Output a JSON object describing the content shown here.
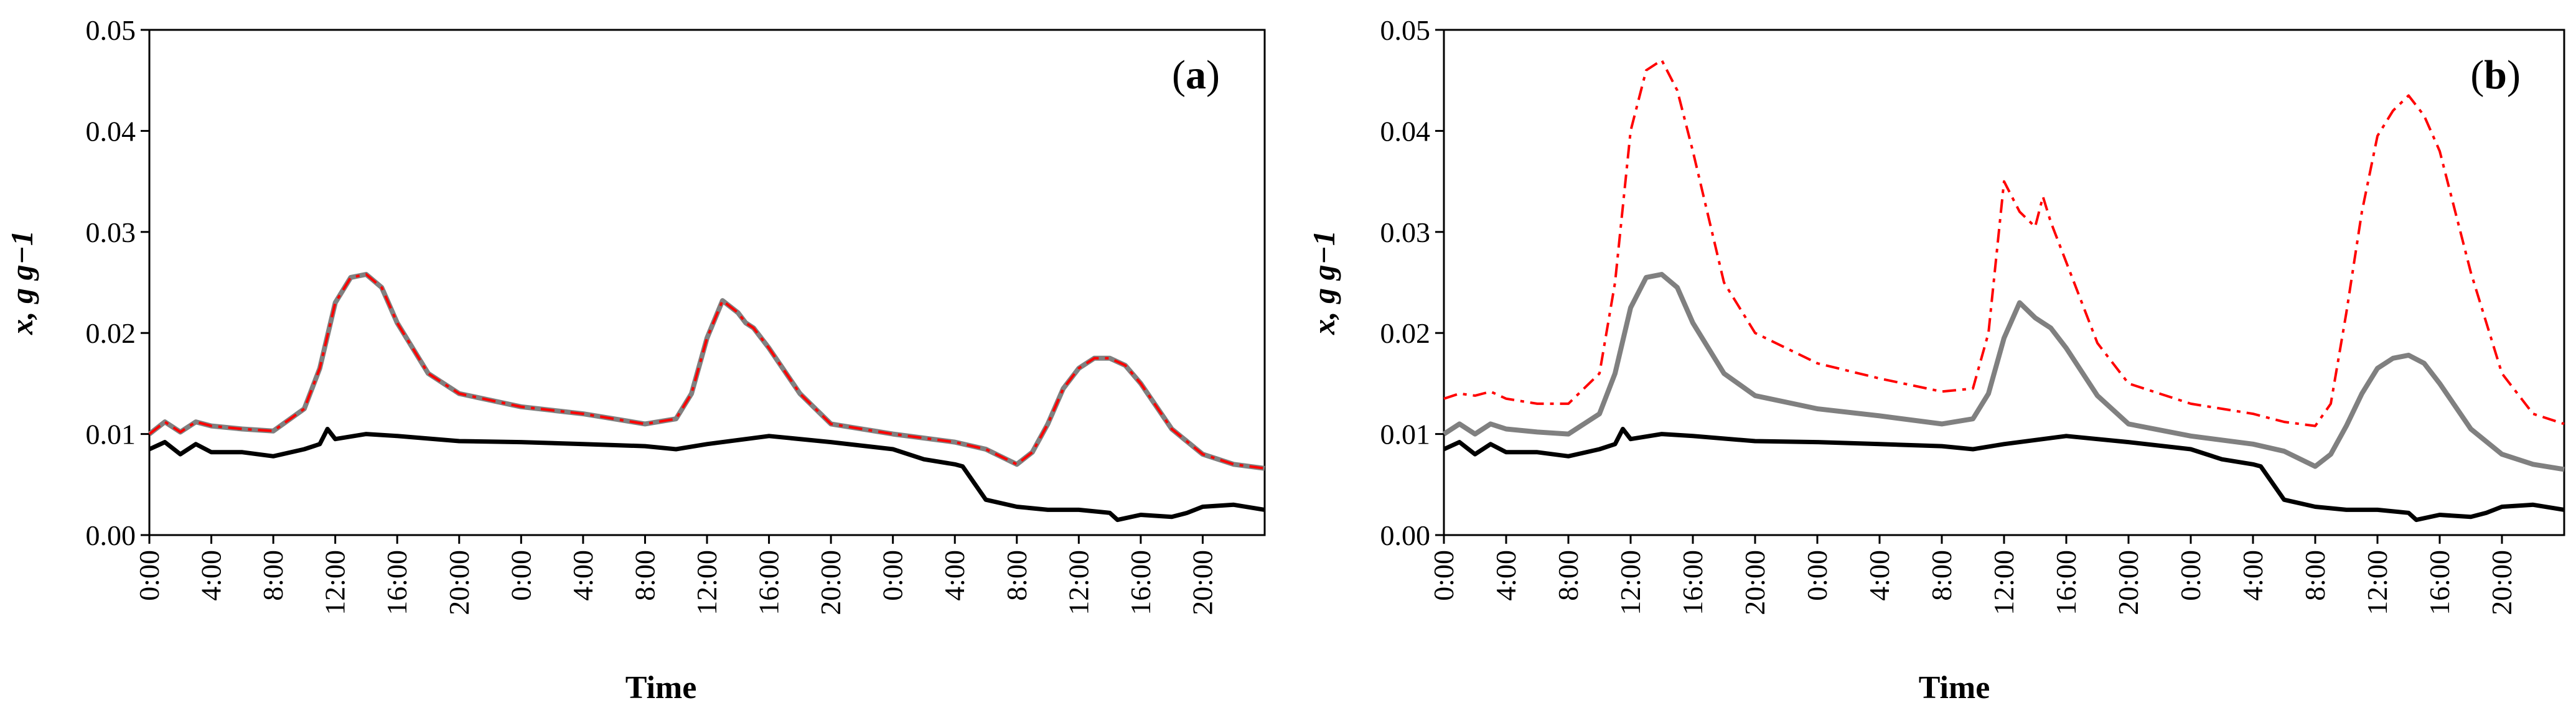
{
  "chart_data": [
    {
      "type": "line",
      "panel": "(a)",
      "label_letter": "a",
      "xlabel": "Time",
      "ylabel": "x, g g−1",
      "ylim": [
        0,
        0.05
      ],
      "yticks": [
        "0.00",
        "0.01",
        "0.02",
        "0.03",
        "0.04",
        "0.05"
      ],
      "xticks": [
        "0:00",
        "4:00",
        "8:00",
        "12:00",
        "16:00",
        "20:00",
        "0:00",
        "4:00",
        "8:00",
        "12:00",
        "16:00",
        "20:00",
        "0:00",
        "4:00",
        "8:00",
        "12:00",
        "16:00",
        "20:00"
      ],
      "x_unit": "hours",
      "xlim": [
        0,
        72
      ],
      "series": [
        {
          "name": "black",
          "color": "#000000",
          "style": "solid",
          "x": [
            0,
            1,
            2,
            3,
            4,
            6,
            8,
            10,
            11,
            11.5,
            12,
            14,
            16,
            20,
            24,
            28,
            32,
            34,
            36,
            40,
            44,
            48,
            50,
            52,
            52.5,
            54,
            56,
            58,
            60,
            62,
            62.5,
            64,
            66,
            67,
            68,
            70,
            72
          ],
          "y": [
            0.0085,
            0.0092,
            0.008,
            0.009,
            0.0082,
            0.0082,
            0.0078,
            0.0085,
            0.009,
            0.0105,
            0.0095,
            0.01,
            0.0098,
            0.0093,
            0.0092,
            0.009,
            0.0088,
            0.0085,
            0.009,
            0.0098,
            0.0092,
            0.0085,
            0.0075,
            0.007,
            0.0068,
            0.0035,
            0.0028,
            0.0025,
            0.0025,
            0.0022,
            0.0015,
            0.002,
            0.0018,
            0.0022,
            0.0028,
            0.003,
            0.0025
          ]
        },
        {
          "name": "gray",
          "color": "#808080",
          "style": "solid",
          "x": [
            0,
            1,
            2,
            3,
            4,
            6,
            8,
            10,
            11,
            12,
            13,
            14,
            15,
            16,
            18,
            20,
            24,
            28,
            32,
            34,
            35,
            36,
            37,
            38,
            38.5,
            39,
            40,
            42,
            44,
            48,
            52,
            54,
            56,
            57,
            58,
            59,
            60,
            61,
            62,
            63,
            64,
            66,
            68,
            70,
            72
          ],
          "y": [
            0.01,
            0.0112,
            0.0102,
            0.0112,
            0.0108,
            0.0105,
            0.0103,
            0.0125,
            0.0165,
            0.023,
            0.0255,
            0.0258,
            0.0245,
            0.021,
            0.016,
            0.014,
            0.0127,
            0.012,
            0.011,
            0.0115,
            0.014,
            0.0195,
            0.0232,
            0.022,
            0.021,
            0.0205,
            0.0185,
            0.014,
            0.011,
            0.01,
            0.0092,
            0.0085,
            0.007,
            0.0082,
            0.011,
            0.0145,
            0.0165,
            0.0175,
            0.0175,
            0.0168,
            0.015,
            0.0105,
            0.008,
            0.007,
            0.0066
          ]
        },
        {
          "name": "red",
          "color": "#ff0000",
          "style": "dash-dot",
          "x": [
            0,
            1,
            2,
            3,
            4,
            6,
            8,
            10,
            11,
            12,
            13,
            14,
            15,
            16,
            18,
            20,
            24,
            28,
            32,
            34,
            35,
            36,
            37,
            38,
            38.5,
            39,
            40,
            42,
            44,
            48,
            52,
            54,
            56,
            57,
            58,
            59,
            60,
            61,
            62,
            63,
            64,
            66,
            68,
            70,
            72
          ],
          "y": [
            0.01,
            0.0112,
            0.0102,
            0.0112,
            0.0108,
            0.0105,
            0.0103,
            0.0125,
            0.0165,
            0.023,
            0.0255,
            0.0258,
            0.0245,
            0.021,
            0.016,
            0.014,
            0.0127,
            0.012,
            0.011,
            0.0115,
            0.014,
            0.0195,
            0.0232,
            0.022,
            0.021,
            0.0205,
            0.0185,
            0.014,
            0.011,
            0.01,
            0.0092,
            0.0085,
            0.007,
            0.0082,
            0.011,
            0.0145,
            0.0165,
            0.0175,
            0.0175,
            0.0168,
            0.015,
            0.0105,
            0.008,
            0.007,
            0.0066
          ]
        }
      ]
    },
    {
      "type": "line",
      "panel": "(b)",
      "label_letter": "b",
      "xlabel": "Time",
      "ylabel": "x, g g−1",
      "ylim": [
        0,
        0.05
      ],
      "yticks": [
        "0.00",
        "0.01",
        "0.02",
        "0.03",
        "0.04",
        "0.05"
      ],
      "xticks": [
        "0:00",
        "4:00",
        "8:00",
        "12:00",
        "16:00",
        "20:00",
        "0:00",
        "4:00",
        "8:00",
        "12:00",
        "16:00",
        "20:00",
        "0:00",
        "4:00",
        "8:00",
        "12:00",
        "16:00",
        "20:00"
      ],
      "x_unit": "hours",
      "xlim": [
        0,
        72
      ],
      "series": [
        {
          "name": "black",
          "color": "#000000",
          "style": "solid",
          "x": [
            0,
            1,
            2,
            3,
            4,
            6,
            8,
            10,
            11,
            11.5,
            12,
            14,
            16,
            20,
            24,
            28,
            32,
            34,
            36,
            40,
            44,
            48,
            50,
            52,
            52.5,
            54,
            56,
            58,
            60,
            62,
            62.5,
            64,
            66,
            67,
            68,
            70,
            72
          ],
          "y": [
            0.0085,
            0.0092,
            0.008,
            0.009,
            0.0082,
            0.0082,
            0.0078,
            0.0085,
            0.009,
            0.0105,
            0.0095,
            0.01,
            0.0098,
            0.0093,
            0.0092,
            0.009,
            0.0088,
            0.0085,
            0.009,
            0.0098,
            0.0092,
            0.0085,
            0.0075,
            0.007,
            0.0068,
            0.0035,
            0.0028,
            0.0025,
            0.0025,
            0.0022,
            0.0015,
            0.002,
            0.0018,
            0.0022,
            0.0028,
            0.003,
            0.0025
          ]
        },
        {
          "name": "gray",
          "color": "#808080",
          "style": "solid",
          "x": [
            0,
            1,
            2,
            3,
            4,
            6,
            8,
            10,
            11,
            12,
            13,
            14,
            15,
            16,
            18,
            20,
            24,
            28,
            32,
            34,
            35,
            36,
            37,
            38,
            38.5,
            39,
            40,
            42,
            44,
            48,
            52,
            54,
            56,
            57,
            58,
            59,
            60,
            61,
            62,
            63,
            64,
            66,
            68,
            70,
            72
          ],
          "y": [
            0.01,
            0.011,
            0.01,
            0.011,
            0.0105,
            0.0102,
            0.01,
            0.012,
            0.016,
            0.0225,
            0.0255,
            0.0258,
            0.0245,
            0.021,
            0.016,
            0.0138,
            0.0125,
            0.0118,
            0.011,
            0.0115,
            0.014,
            0.0195,
            0.023,
            0.0215,
            0.021,
            0.0205,
            0.0185,
            0.0138,
            0.011,
            0.0098,
            0.009,
            0.0083,
            0.0068,
            0.008,
            0.0108,
            0.014,
            0.0165,
            0.0175,
            0.0178,
            0.017,
            0.015,
            0.0105,
            0.008,
            0.007,
            0.0065
          ]
        },
        {
          "name": "red",
          "color": "#ff0000",
          "style": "dash-dot",
          "x": [
            0,
            1,
            2,
            3,
            4,
            6,
            8,
            10,
            11,
            12,
            13,
            14,
            15,
            16,
            18,
            20,
            24,
            28,
            32,
            34,
            35,
            36,
            37,
            38,
            38.5,
            39,
            40,
            42,
            44,
            48,
            52,
            54,
            56,
            57,
            58,
            59,
            60,
            61,
            62,
            63,
            64,
            66,
            68,
            70,
            72
          ],
          "y": [
            0.0135,
            0.014,
            0.0138,
            0.0142,
            0.0135,
            0.013,
            0.013,
            0.016,
            0.025,
            0.04,
            0.046,
            0.047,
            0.044,
            0.038,
            0.025,
            0.02,
            0.017,
            0.0155,
            0.0142,
            0.0145,
            0.02,
            0.035,
            0.032,
            0.0305,
            0.0335,
            0.031,
            0.027,
            0.019,
            0.015,
            0.013,
            0.012,
            0.0112,
            0.0108,
            0.013,
            0.022,
            0.032,
            0.0395,
            0.042,
            0.0435,
            0.0415,
            0.038,
            0.026,
            0.016,
            0.012,
            0.011
          ]
        }
      ]
    }
  ]
}
